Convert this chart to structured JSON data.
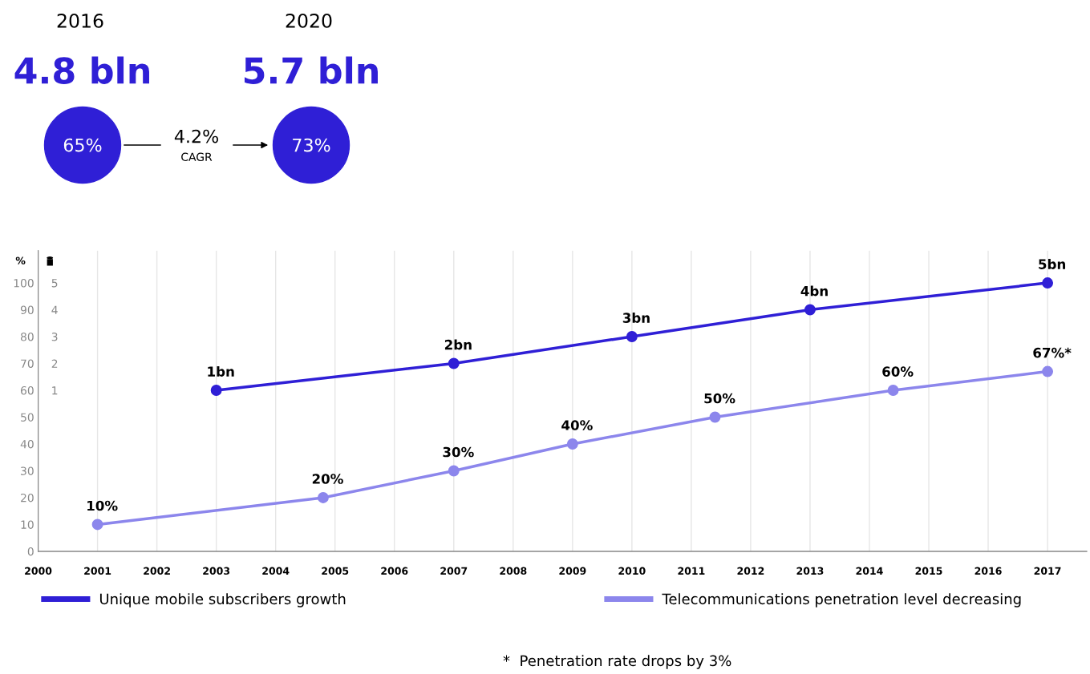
{
  "chart_data": {
    "type": "line",
    "ylabel": "%",
    "x": [
      2001,
      2004.8,
      2007,
      2009,
      2011.4,
      2014.4,
      2017
    ],
    "series": [
      {
        "name": "Unique mobile subscribers growth",
        "color": "#2f1fd6",
        "axis": "y2",
        "x": [
          2003,
          2007,
          2010,
          2013,
          2017
        ],
        "values": [
          1,
          2,
          3,
          4,
          5
        ],
        "value_labels": [
          "1bn",
          "2bn",
          "3bn",
          "4bn",
          "5bn"
        ]
      },
      {
        "name": "Telecommunications penetration level decreasing",
        "color": "#8c86ec",
        "values": [
          10,
          20,
          30,
          40,
          50,
          60,
          67
        ],
        "value_labels": [
          "10%",
          "20%",
          "30%",
          "40%",
          "50%",
          "60%",
          "67%*"
        ]
      }
    ],
    "xlim": [
      2000,
      2017.66
    ],
    "xticks": [
      2000,
      2001,
      2002,
      2003,
      2004,
      2005,
      2006,
      2007,
      2008,
      2009,
      2010,
      2011,
      2012,
      2013,
      2014,
      2015,
      2016,
      2017
    ],
    "ylim": [
      0,
      112
    ],
    "yticks": [
      0,
      10,
      20,
      30,
      40,
      50,
      60,
      70,
      80,
      90,
      100
    ],
    "y2lim": [
      -5,
      6.2
    ],
    "y2ticks": [
      1,
      2,
      3,
      4,
      5
    ],
    "grid": "x",
    "marker": "circle",
    "line_style": "solid",
    "legend": "bottom",
    "annotations": [
      "2016",
      "4.8 bln",
      "65%",
      "4.2%",
      "CAGR",
      "2020",
      "5.7 bln",
      "73%",
      "*  Penetration rate drops by 3%"
    ]
  }
}
